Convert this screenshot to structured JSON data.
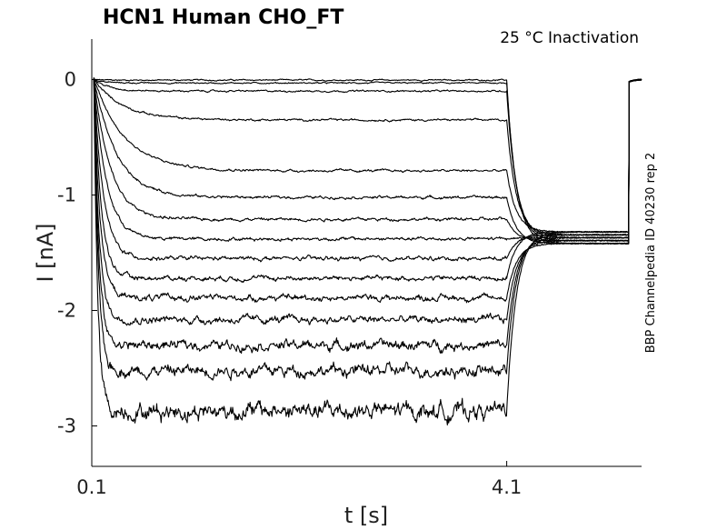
{
  "chart_data": {
    "type": "line",
    "title": "HCN1  Human  CHO_FT",
    "annotation": "25 °C  Inactivation",
    "side_label": "BBP Channelpedia ID 40230 rep 2",
    "xlabel": "t [s]",
    "ylabel": "I [nA]",
    "xlim": [
      0.1,
      5.4
    ],
    "ylim": [
      -3.35,
      0.35
    ],
    "xticks": [
      0.1,
      4.1
    ],
    "xtick_labels": [
      "0.1",
      "4.1"
    ],
    "yticks": [
      0,
      -1,
      -2,
      -3
    ],
    "ytick_labels": [
      "0",
      "-1",
      "-2",
      "-3"
    ],
    "grid": false,
    "line_color": "#000000",
    "step_start_s": 0.12,
    "step_end_s": 4.1,
    "tail_current_nA": -1.37,
    "recovery_time_s": 5.28,
    "series": [
      {
        "steady_nA": -0.005,
        "tau_s": 0.05,
        "noise_nA": 0.004
      },
      {
        "steady_nA": -0.03,
        "tau_s": 0.1,
        "noise_nA": 0.004
      },
      {
        "steady_nA": -0.1,
        "tau_s": 0.15,
        "noise_nA": 0.005
      },
      {
        "steady_nA": -0.35,
        "tau_s": 0.28,
        "noise_nA": 0.006
      },
      {
        "steady_nA": -0.79,
        "tau_s": 0.3,
        "noise_nA": 0.007
      },
      {
        "steady_nA": -1.02,
        "tau_s": 0.22,
        "noise_nA": 0.008
      },
      {
        "steady_nA": -1.21,
        "tau_s": 0.16,
        "noise_nA": 0.009
      },
      {
        "steady_nA": -1.38,
        "tau_s": 0.12,
        "noise_nA": 0.01
      },
      {
        "steady_nA": -1.55,
        "tau_s": 0.09,
        "noise_nA": 0.012
      },
      {
        "steady_nA": -1.72,
        "tau_s": 0.07,
        "noise_nA": 0.014
      },
      {
        "steady_nA": -1.89,
        "tau_s": 0.06,
        "noise_nA": 0.018
      },
      {
        "steady_nA": -2.08,
        "tau_s": 0.05,
        "noise_nA": 0.022
      },
      {
        "steady_nA": -2.3,
        "tau_s": 0.045,
        "noise_nA": 0.028
      },
      {
        "steady_nA": -2.52,
        "tau_s": 0.04,
        "noise_nA": 0.035
      },
      {
        "steady_nA": -2.87,
        "tau_s": 0.035,
        "noise_nA": 0.05
      }
    ]
  }
}
